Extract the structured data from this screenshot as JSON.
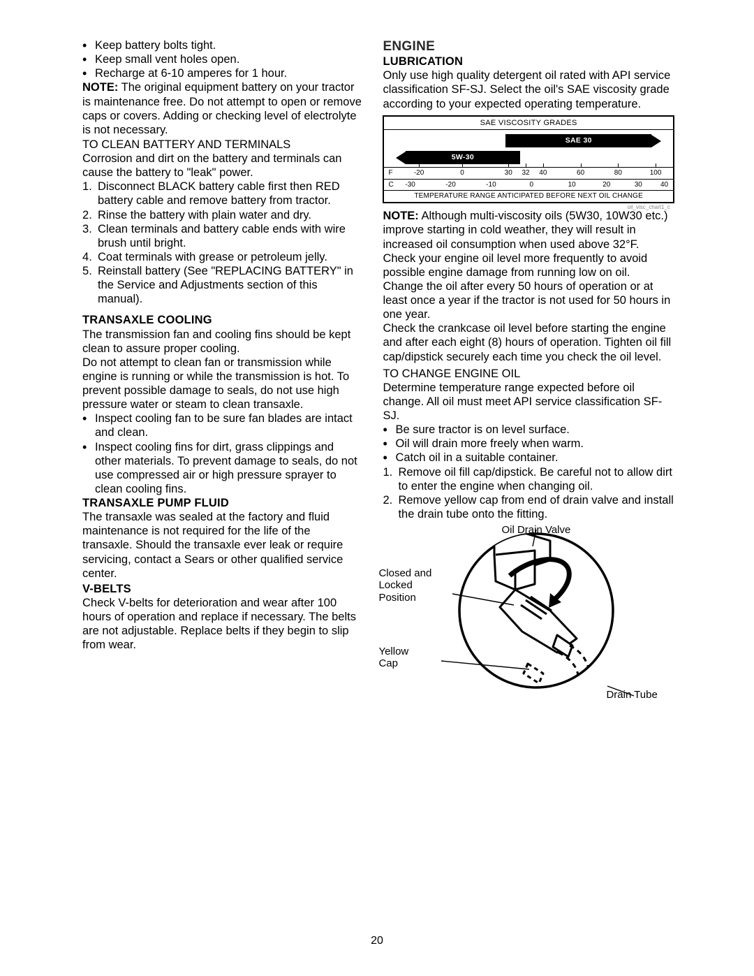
{
  "page_number": "20",
  "left": {
    "battery_bullets": [
      "Keep battery bolts tight.",
      "Keep small vent holes open.",
      "Recharge at  6-10 amperes for 1 hour."
    ],
    "note_label": "NOTE:",
    "note_text": " The original equipment battery on your tractor is maintenance free. Do not attempt to open or remove caps or covers. Adding or checking level of electrolyte is not necessary.",
    "clean_heading": "TO CLEAN BATTERY AND TERMINALS",
    "clean_intro": "Corrosion and dirt on the battery and terminals can cause the battery to \"leak\" power.",
    "clean_steps": [
      "Disconnect BLACK battery cable first then RED  battery cable and remove battery from tractor.",
      "Rinse the battery with plain water and dry.",
      "Clean terminals and battery cable ends with wire brush until bright.",
      "Coat terminals with grease or petroleum jelly.",
      "Reinstall battery (See \"REPLACING BATTERY\" in the Service and Adjustments section of this manual)."
    ],
    "transaxle_cooling_h": "TRANSAXLE COOLING",
    "transaxle_cooling_p1": "The transmission fan and cooling fins should be kept clean to assure proper cooling.",
    "transaxle_cooling_p2": "Do not attempt to clean fan or transmission while engine is running or while the transmission is hot. To prevent possible damage to seals, do not use high pressure water or steam to clean transaxle.",
    "transaxle_bullets": [
      "Inspect cooling fan to be sure fan blades are intact and clean.",
      "Inspect cooling fins for dirt, grass clippings and other materials.  To prevent damage to seals, do not use compressed air or high pressure sprayer to clean cooling fins."
    ],
    "pump_h": "TRANSAXLE PUMP FLUID",
    "pump_p": "The transaxle was sealed at the factory and fluid maintenance is not required for the life of the transaxle.  Should the transaxle ever leak or require servicing, contact a Sears or other qualified service center.",
    "vbelts_h": "V-BELTS",
    "vbelts_p": "Check V-belts for deterioration and wear after 100 hours of operation and replace if necessary. The belts are not adjustable. Replace belts if they begin to slip from wear."
  },
  "right": {
    "engine_h": "ENGINE",
    "lubrication_h": "LUBRICATION",
    "lubrication_p": "Only use high quality detergent oil rated with API service classification SF-SJ. Select the oil's SAE viscosity grade according to your expected operating temperature.",
    "chart": {
      "title": "SAE VISCOSITY GRADES",
      "bar1_label": "SAE 30",
      "bar1_left_pct": 42,
      "bar1_right_pct": 4,
      "bar2_label": "5W-30",
      "bar2_left_pct": 4,
      "bar2_right_pct": 53,
      "f_unit": "F",
      "f_ticks": [
        {
          "v": "-20",
          "p": 12
        },
        {
          "v": "0",
          "p": 27
        },
        {
          "v": "30",
          "p": 43
        },
        {
          "v": "32",
          "p": 49
        },
        {
          "v": "40",
          "p": 55
        },
        {
          "v": "60",
          "p": 68
        },
        {
          "v": "80",
          "p": 81
        },
        {
          "v": "100",
          "p": 94
        }
      ],
      "c_unit": "C",
      "c_ticks": [
        {
          "v": "-30",
          "p": 9
        },
        {
          "v": "-20",
          "p": 23
        },
        {
          "v": "-10",
          "p": 37
        },
        {
          "v": "0",
          "p": 51
        },
        {
          "v": "10",
          "p": 65
        },
        {
          "v": "20",
          "p": 77
        },
        {
          "v": "30",
          "p": 88
        },
        {
          "v": "40",
          "p": 97
        }
      ],
      "footer": "TEMPERATURE RANGE ANTICIPATED BEFORE NEXT OIL CHANGE",
      "src": "oil_visc_chart1_c"
    },
    "note2_label": "NOTE:",
    "note2_text": " Although multi-viscosity oils (5W30, 10W30 etc.) improve starting in cold weather, they will result in increased oil consumption when used above 32°F. Check your engine oil level more frequently to avoid possible engine damage from running low on oil.",
    "change_p1": "Change the oil after every 50 hours of operation or at least once a year if the tractor is not used for 50 hours in one year.",
    "change_p2": "Check the crankcase oil level before starting the engine and after each eight (8) hours of operation. Tighten oil fill cap/dipstick securely each time you check the oil level.",
    "tochange_h": "TO CHANGE ENGINE OIL",
    "tochange_p": "Determine temperature range expected before oil change.  All oil must meet API service classification SF-SJ.",
    "tochange_bullets": [
      "Be sure tractor is on level surface.",
      "Oil will drain more freely when warm.",
      "Catch oil in a suitable container."
    ],
    "tochange_steps": [
      "Remove oil fill cap/dipstick.  Be careful not to allow dirt to enter the engine when changing oil.",
      "Remove yellow cap from end of drain valve and install the drain tube onto the fitting."
    ],
    "fig": {
      "label_valve": "Oil Drain Valve",
      "label_closed": "Closed and Locked Position",
      "label_yellow": "Yellow Cap",
      "label_tube": "Drain Tube"
    }
  }
}
